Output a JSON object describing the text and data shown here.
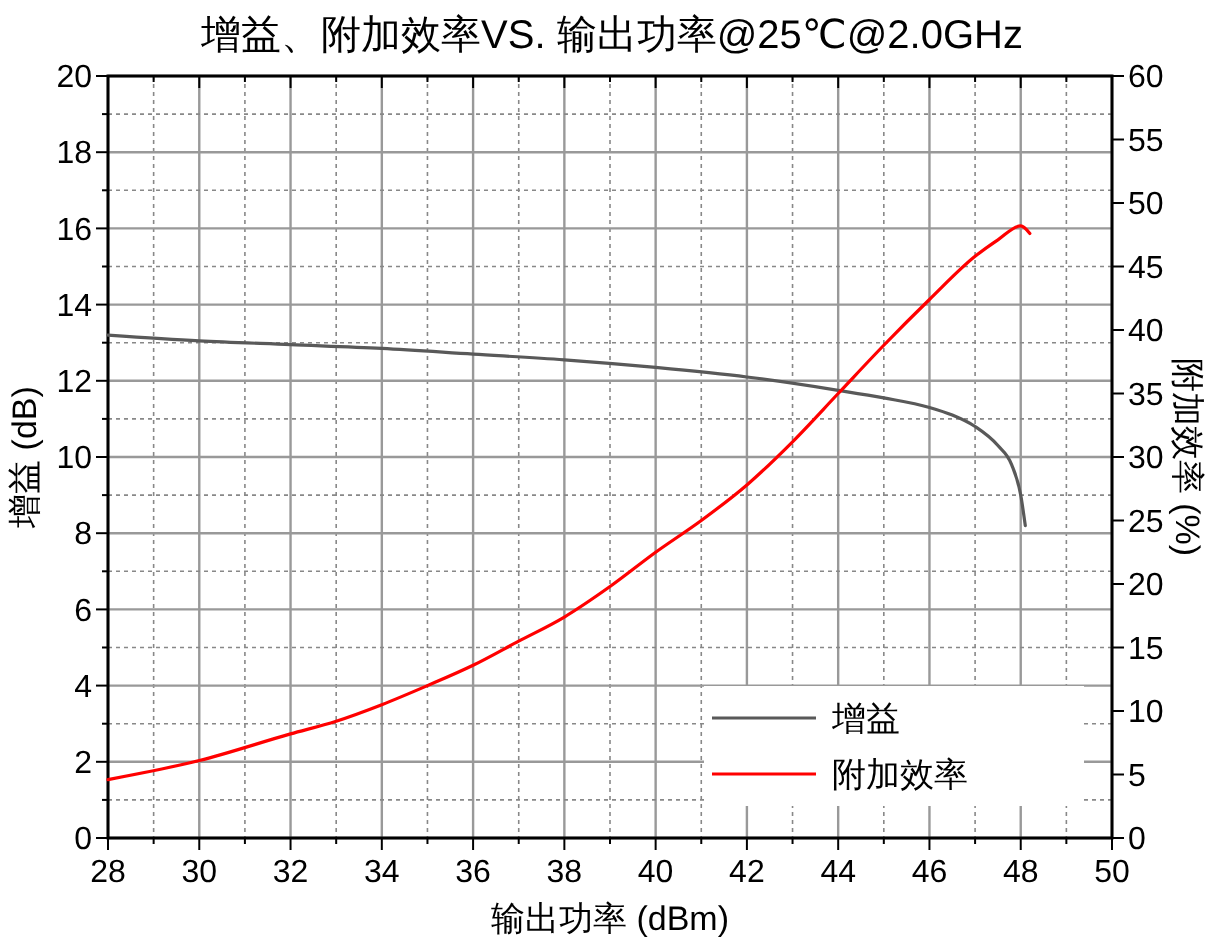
{
  "chart_data": {
    "type": "line",
    "title": "增益、附加效率VS. 输出功率@25℃@2.0GHz",
    "xlabel": "输出功率 (dBm)",
    "ylabel": "增益 (dB)",
    "y2label": "附加效率 (%)",
    "xlim": [
      28,
      50
    ],
    "xticks": [
      28,
      {
        "value": 29,
        "label": null
      },
      30,
      {
        "value": 31,
        "label": null
      },
      32,
      {
        "value": 33,
        "label": null
      },
      34,
      {
        "value": 35,
        "label": null
      },
      36,
      {
        "value": 37,
        "label": null
      },
      38,
      {
        "value": 39,
        "label": null
      },
      40,
      {
        "value": 41,
        "label": null
      },
      42,
      {
        "value": 43,
        "label": null
      },
      44,
      {
        "value": 45,
        "label": null
      },
      46,
      {
        "value": 47,
        "label": null
      },
      48,
      {
        "value": 49,
        "label": null
      },
      50
    ],
    "ylim": [
      0,
      20
    ],
    "yticks": [
      0,
      {
        "value": 1,
        "label": null
      },
      2,
      {
        "value": 3,
        "label": null
      },
      4,
      {
        "value": 5,
        "label": null
      },
      6,
      {
        "value": 7,
        "label": null
      },
      8,
      {
        "value": 9,
        "label": null
      },
      10,
      {
        "value": 11,
        "label": null
      },
      12,
      {
        "value": 13,
        "label": null
      },
      14,
      {
        "value": 15,
        "label": null
      },
      16,
      {
        "value": 17,
        "label": null
      },
      18,
      {
        "value": 19,
        "label": null
      },
      20
    ],
    "y2lim": [
      0,
      60
    ],
    "y2ticks": [
      0,
      5,
      10,
      15,
      20,
      25,
      30,
      35,
      40,
      45,
      50,
      55,
      60
    ],
    "grid": true,
    "legend": "bottom right",
    "line_style": "solid",
    "series": [
      {
        "name": "增益",
        "color": "#595959",
        "x": [
          28,
          30,
          32,
          34,
          36,
          38,
          40,
          42,
          44,
          45,
          46,
          46.5,
          47,
          47.5,
          47.8,
          48,
          48.1
        ],
        "values": [
          13.2,
          13.05,
          12.95,
          12.85,
          12.7,
          12.55,
          12.35,
          12.1,
          11.75,
          11.55,
          11.3,
          11.1,
          10.8,
          10.3,
          9.8,
          9,
          8.2
        ]
      },
      {
        "name": "附加效率",
        "color": "#ff0000",
        "axis": "y2",
        "x": [
          28,
          30,
          32,
          33,
          34,
          35,
          36,
          37,
          38,
          39,
          40,
          41,
          42,
          43,
          44,
          45,
          46,
          47,
          47.5,
          48,
          48.2
        ],
        "values": [
          4.6,
          6.1,
          8.2,
          9.2,
          10.5,
          12,
          13.6,
          15.5,
          17.4,
          19.8,
          22.5,
          25,
          27.8,
          31.2,
          35,
          38.8,
          42.4,
          45.8,
          47.1,
          48.2,
          47.6
        ]
      }
    ]
  }
}
